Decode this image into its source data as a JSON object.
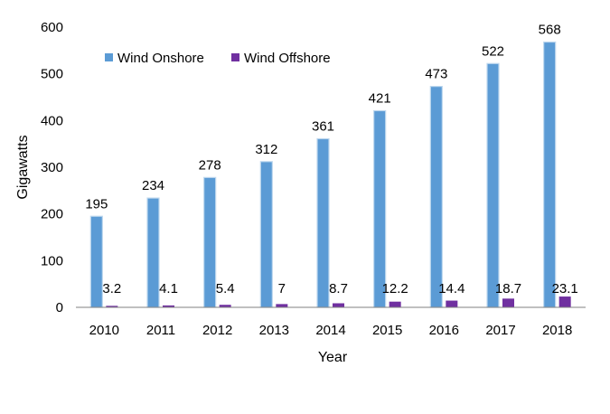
{
  "chart_data": {
    "type": "bar",
    "categories": [
      "2010",
      "2011",
      "2012",
      "2013",
      "2014",
      "2015",
      "2016",
      "2017",
      "2018"
    ],
    "series": [
      {
        "name": "Wind Onshore",
        "values": [
          195,
          234,
          278,
          312,
          361,
          421,
          473,
          522,
          568
        ],
        "labels": [
          "195",
          "234",
          "278",
          "312",
          "361",
          "421",
          "473",
          "522",
          "568"
        ],
        "color": "#5B9BD5"
      },
      {
        "name": "Wind Offshore",
        "values": [
          3.2,
          4.1,
          5.4,
          7,
          8.7,
          12.2,
          14.4,
          18.7,
          23.1
        ],
        "labels": [
          "3.2",
          "4.1",
          "5.4",
          "7",
          "8.7",
          "12.2",
          "14.4",
          "18.7",
          "23.1"
        ],
        "color": "#7030A0"
      }
    ],
    "xlabel": "Year",
    "ylabel": "Gigawatts",
    "ylim": [
      0,
      600
    ],
    "yticks": [
      0,
      100,
      200,
      300,
      400,
      500,
      600
    ],
    "ytick_labels": [
      "0",
      "100",
      "200",
      "300",
      "400",
      "500",
      "600"
    ],
    "grid": false,
    "legend_position": "top-left"
  }
}
